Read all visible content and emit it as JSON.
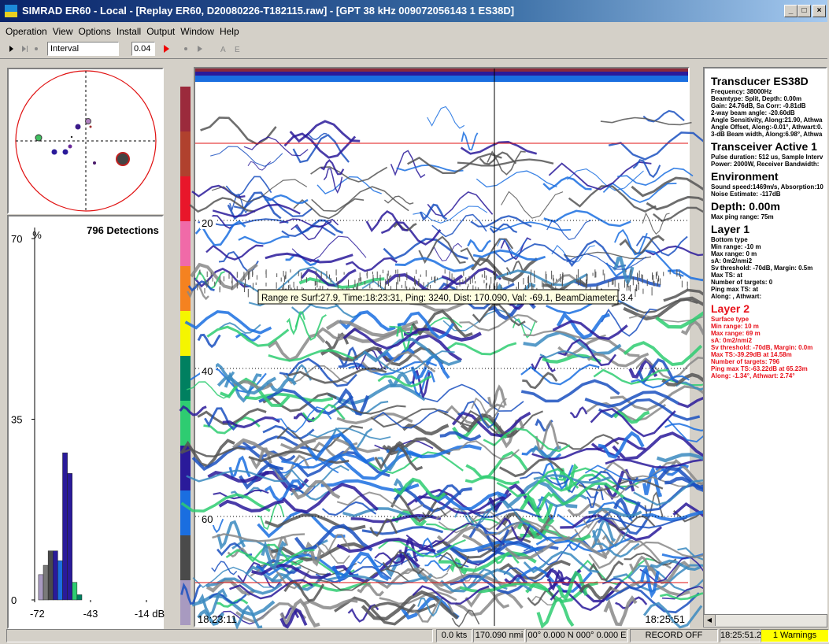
{
  "window": {
    "title": "SIMRAD ER60 - Local - [Replay ER60, D20080226-T182115.raw] - [GPT  38 kHz 009072056143 1 ES38D]",
    "menu": [
      "Operation",
      "View",
      "Options",
      "Install",
      "Output",
      "Window",
      "Help"
    ],
    "toolbar": {
      "mode": "Interval",
      "interval": "0.04"
    }
  },
  "chart_data": {
    "type": "histogram",
    "title": "796 Detections",
    "y_label": "%",
    "bins": [
      -70,
      -67.5,
      -65,
      -62.5,
      -60,
      -57.5,
      -55,
      -52.5,
      -50,
      -47.5
    ],
    "values": [
      4.9,
      6.7,
      9.5,
      9.5,
      7.6,
      28.5,
      24.5,
      3.4,
      1
    ],
    "colors": [
      "#a89ac0",
      "#7a7a7a",
      "#4a4a4a",
      "#2a1a9a",
      "#1a6ee0",
      "#2a1a9a",
      "#2a1a9a",
      "#2ecc71",
      "#008060"
    ],
    "xlim": [
      -72,
      -14
    ],
    "xticks": [
      -72,
      -43,
      {
        "value": -14,
        "label": "-14 dB"
      }
    ],
    "ylim": [
      0,
      70
    ],
    "yticks": [
      0,
      35,
      70
    ]
  },
  "echogram": {
    "depth_ticks": [
      20,
      40,
      60
    ],
    "start_time": "18:23:11",
    "end_time": "18:25:51",
    "tooltip": "Range re Surf:27.9, Time:18:23:31, Ping: 3240, Dist: 170.090, Val: -69.1, BeamDiameter: 3.4"
  },
  "info_panel": [
    {
      "heading": "Transducer ES38D",
      "color": "#000000",
      "lines": [
        "Frequency: 38000Hz",
        "Beamtype: Split, Depth: 0.00m",
        "Gain: 24.76dB, Sa Corr: -0.81dB",
        "2-way beam angle: -20.60dB",
        "Angle Sensitivity, Along:21.90, Athwa",
        "Angle Offset, Along:-0.01°, Athwart:0.",
        "3-dB Beam width, Along:6.98°, Athwa"
      ]
    },
    {
      "heading": "Transceiver Active  1",
      "color": "#000000",
      "lines": [
        "Pulse duration: 512 us, Sample Interv",
        "Power: 2000W, Receiver Bandwidth:"
      ]
    },
    {
      "heading": "Environment",
      "color": "#000000",
      "lines": [
        "Sound speed:1469m/s, Absorption:10",
        "Noise Estimate: -117dB"
      ]
    },
    {
      "heading": "Depth: 0.00m",
      "color": "#000000",
      "lines": [
        "Max ping range: 75m"
      ]
    },
    {
      "heading": "Layer 1",
      "color": "#000000",
      "lines": [
        "Bottom type",
        "Min range: -10 m",
        "Max range: 0 m",
        "sA: 0m2/nmi2",
        "Sv threshold: -70dB, Margin: 0.5m",
        "Max TS:      at",
        "Number of targets:   0",
        "Ping max TS:      at",
        "Along:          , Athwart:"
      ]
    },
    {
      "heading": "Layer 2",
      "color": "#e8101a",
      "lines": [
        "Surface type",
        "Min range: 10 m",
        "Max range: 69 m",
        "sA: 0m2/nmi2",
        "Sv threshold: -70dB, Margin: 0.0m",
        "Max TS:-39.29dB at 14.58m",
        "Number of targets:  796",
        "Ping max TS:-63.22dB at 65.23m",
        "Along: -1.34°, Athwart:  2.74°"
      ]
    }
  ],
  "status_bar": [
    "0.0 kts",
    "170.090 nmi",
    "00° 0.000 N  000° 0.000 E",
    "RECORD OFF",
    "18:25:51.24",
    "1 Warnings"
  ]
}
